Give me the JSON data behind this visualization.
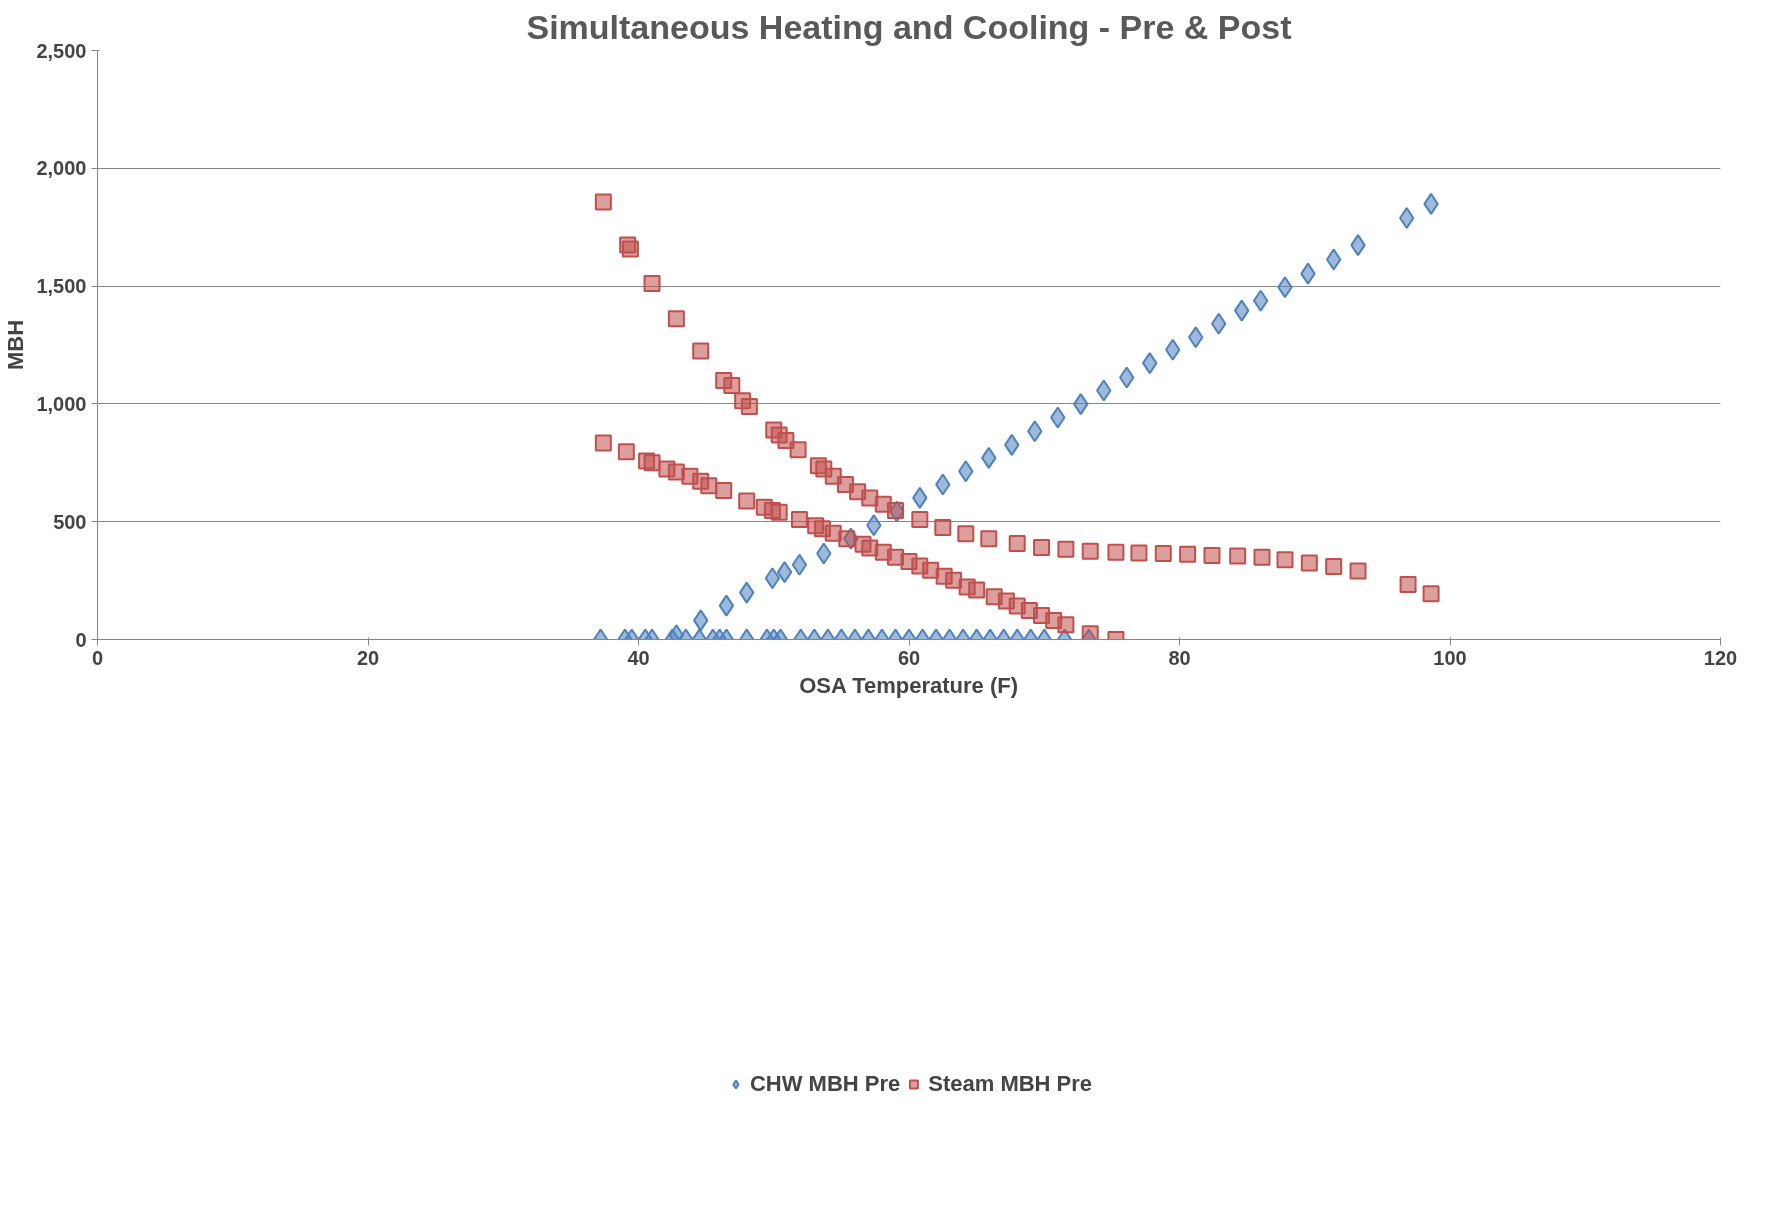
{
  "chart_data": {
    "type": "scatter",
    "title": "Simultaneous Heating and Cooling - Pre & Post",
    "xlabel": "OSA Temperature (F)",
    "ylabel": "MBH",
    "xlim": [
      0,
      120
    ],
    "xticks": [
      0,
      20,
      40,
      60,
      80,
      100,
      120
    ],
    "ylim": [
      0,
      2500
    ],
    "yticks": [
      {
        "value": 0,
        "label": "0"
      },
      {
        "value": 500,
        "label": "500"
      },
      {
        "value": 1000,
        "label": "1,000"
      },
      {
        "value": 1500,
        "label": "1,500"
      },
      {
        "value": 2000,
        "label": "2,000"
      },
      {
        "value": 2500,
        "label": "2,500"
      }
    ],
    "grid": "y",
    "legend": "bottom",
    "series": [
      {
        "name": "CHW MBH Pre",
        "color": "#4f81bd",
        "marker": "diamond",
        "x": [
          98.6,
          96.8,
          93.2,
          91.4,
          89.5,
          87.8,
          86,
          84.6,
          82.9,
          81.2,
          79.5,
          77.8,
          76.1,
          74.4,
          72.7,
          71,
          69.3,
          67.6,
          65.9,
          64.2,
          62.5,
          60.8,
          59.1,
          57.4,
          55.7,
          53.7,
          51.9,
          50.8,
          49.9,
          48,
          46.5,
          44.6,
          42.8,
          37.2,
          39,
          39.5,
          40.5,
          41,
          42.5,
          43.5,
          44.5,
          45.5,
          46,
          46.5,
          48,
          49.5,
          50,
          50.5,
          52,
          53,
          54,
          55,
          56,
          57,
          58,
          59,
          60,
          61,
          62,
          63,
          64,
          65,
          66,
          67,
          68,
          69,
          70,
          71.5,
          73.3
        ],
        "values": [
          1849,
          1789,
          1674,
          1613,
          1553,
          1495,
          1438,
          1396,
          1340,
          1283,
          1230,
          1173,
          1112,
          1057,
          999,
          942,
          884,
          826,
          771,
          714,
          658,
          601,
          543,
          485,
          428,
          365,
          317,
          286,
          260,
          199,
          144,
          81,
          18,
          0,
          0,
          0,
          0,
          0,
          0,
          0,
          0,
          0,
          0,
          0,
          0,
          0,
          0,
          0,
          0,
          0,
          0,
          0,
          0,
          0,
          0,
          0,
          0,
          0,
          0,
          0,
          0,
          0,
          0,
          0,
          0,
          0,
          0,
          0,
          0
        ]
      },
      {
        "name": "Steam MBH Pre",
        "color": "#c0504d",
        "marker": "square",
        "x": [
          37.4,
          39.2,
          39.4,
          41,
          42.8,
          44.6,
          46.3,
          46.9,
          47.7,
          48.2,
          50,
          50.4,
          50.9,
          51.8,
          53.3,
          53.7,
          54.4,
          55.3,
          56.2,
          57.1,
          58.1,
          59,
          60.8,
          62.5,
          64.2,
          65.9,
          68,
          69.8,
          71.6,
          73.4,
          75.3,
          77,
          78.8,
          80.6,
          82.4,
          84.3,
          86.1,
          87.8,
          89.6,
          91.4,
          93.2,
          96.9,
          98.6,
          37.4,
          39.1,
          40.6,
          41,
          42.1,
          42.8,
          43.8,
          44.6,
          45.2,
          46.3,
          48,
          49.3,
          49.9,
          50.4,
          51.9,
          53.1,
          53.6,
          54.4,
          55.4,
          56.6,
          57.1,
          58.1,
          59,
          60,
          60.8,
          61.6,
          62.6,
          63.3,
          64.3,
          65,
          66.3,
          67.2,
          68,
          68.9,
          69.8,
          70.7,
          71.6,
          73.4,
          75.3
        ],
        "values": [
          1857,
          1674,
          1658,
          1511,
          1361,
          1225,
          1099,
          1078,
          1013,
          989,
          889,
          868,
          845,
          805,
          737,
          724,
          693,
          658,
          627,
          601,
          574,
          548,
          509,
          475,
          449,
          428,
          407,
          391,
          383,
          375,
          370,
          367,
          365,
          362,
          357,
          354,
          349,
          338,
          325,
          310,
          291,
          233,
          194,
          834,
          797,
          758,
          750,
          724,
          711,
          693,
          672,
          653,
          632,
          588,
          561,
          548,
          540,
          509,
          483,
          470,
          451,
          428,
          404,
          388,
          370,
          349,
          331,
          312,
          294,
          268,
          252,
          223,
          210,
          181,
          163,
          142,
          123,
          102,
          81,
          63,
          24,
          0
        ]
      }
    ]
  }
}
